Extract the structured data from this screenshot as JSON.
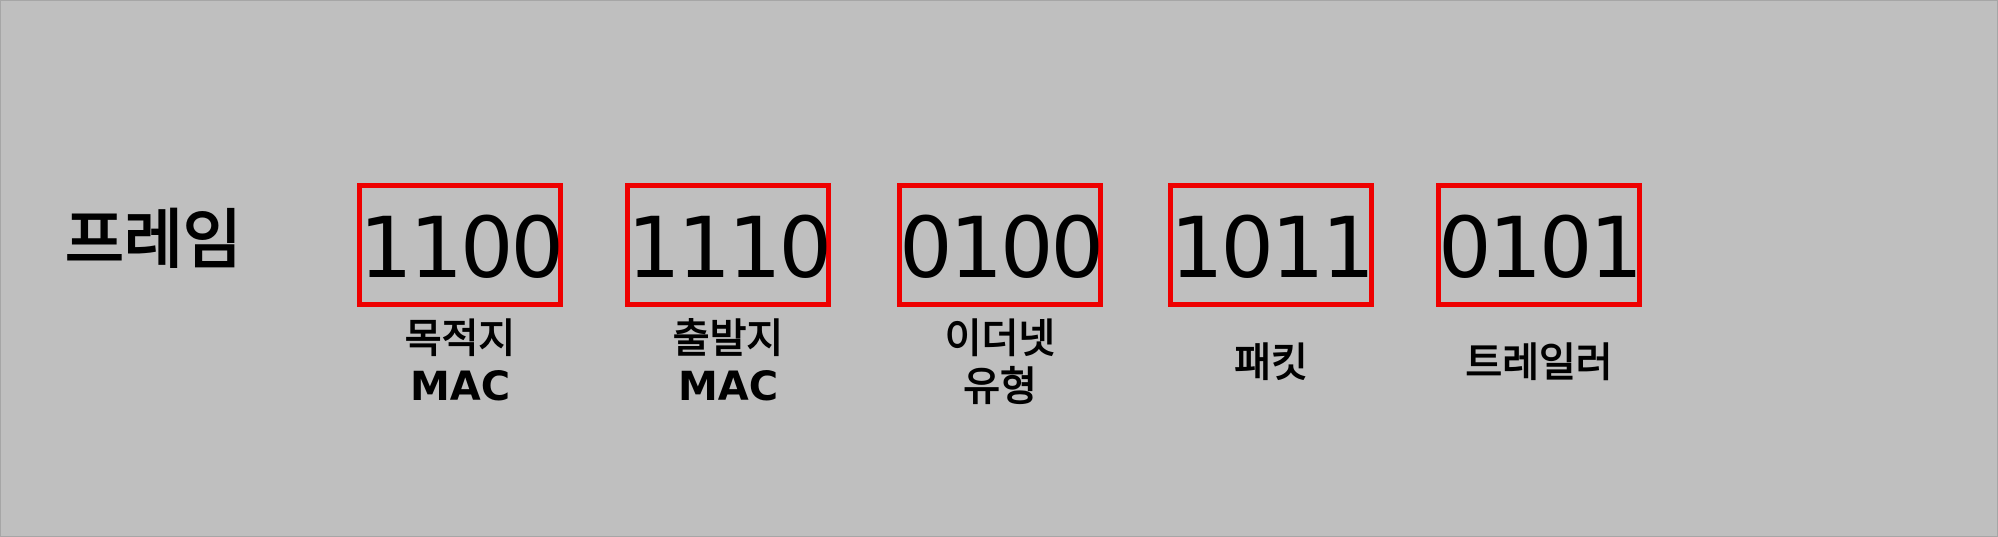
{
  "diagram": {
    "title": "프레임",
    "fields": [
      {
        "value": "1100",
        "caption": [
          "목적지",
          "MAC"
        ]
      },
      {
        "value": "1110",
        "caption": [
          "출발지",
          "MAC"
        ]
      },
      {
        "value": "0100",
        "caption": [
          "이더넷",
          "유형"
        ]
      },
      {
        "value": "1011",
        "caption": [
          "패킷"
        ]
      },
      {
        "value": "0101",
        "caption": [
          "트레일러"
        ]
      }
    ]
  },
  "colors": {
    "background": "#bfbfbf",
    "box_border": "#ee0000",
    "text": "#000000"
  }
}
